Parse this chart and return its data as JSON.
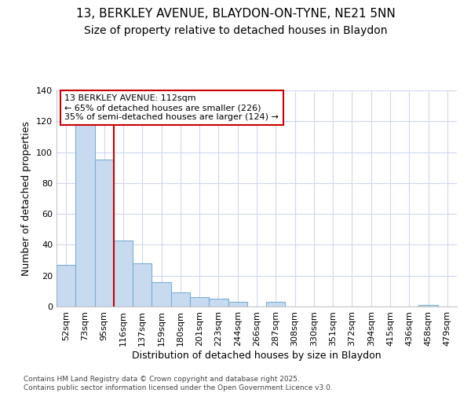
{
  "title1": "13, BERKLEY AVENUE, BLAYDON-ON-TYNE, NE21 5NN",
  "title2": "Size of property relative to detached houses in Blaydon",
  "xlabel": "Distribution of detached houses by size in Blaydon",
  "ylabel": "Number of detached properties",
  "categories": [
    "52sqm",
    "73sqm",
    "95sqm",
    "116sqm",
    "137sqm",
    "159sqm",
    "180sqm",
    "201sqm",
    "223sqm",
    "244sqm",
    "266sqm",
    "287sqm",
    "308sqm",
    "330sqm",
    "351sqm",
    "372sqm",
    "394sqm",
    "415sqm",
    "436sqm",
    "458sqm",
    "479sqm"
  ],
  "values": [
    27,
    118,
    95,
    43,
    28,
    16,
    9,
    6,
    5,
    3,
    0,
    3,
    0,
    0,
    0,
    0,
    0,
    0,
    0,
    1,
    0
  ],
  "bar_color": "#c8daf0",
  "bar_edge_color": "#7aafd4",
  "vline_color": "#cc0000",
  "ylim": [
    0,
    140
  ],
  "yticks": [
    0,
    20,
    40,
    60,
    80,
    100,
    120,
    140
  ],
  "annotation_text": "13 BERKLEY AVENUE: 112sqm\n← 65% of detached houses are smaller (226)\n35% of semi-detached houses are larger (124) →",
  "annotation_box_color": "#ffffff",
  "annotation_border_color": "#cc0000",
  "footnote1": "Contains HM Land Registry data © Crown copyright and database right 2025.",
  "footnote2": "Contains public sector information licensed under the Open Government Licence v3.0.",
  "bg_color": "#ffffff",
  "grid_color": "#d0d8f0",
  "title_fontsize": 11,
  "subtitle_fontsize": 10,
  "tick_fontsize": 8,
  "label_fontsize": 9
}
